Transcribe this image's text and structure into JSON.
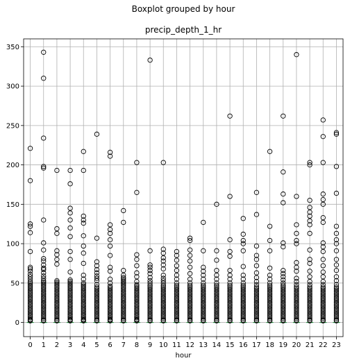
{
  "chart_data": {
    "type": "box",
    "suptitle": "Boxplot grouped by hour",
    "title": "precip_depth_1_hr",
    "xlabel": "hour",
    "ylabel": "",
    "categories": [
      "0",
      "1",
      "2",
      "3",
      "4",
      "5",
      "6",
      "7",
      "8",
      "9",
      "10",
      "11",
      "12",
      "13",
      "14",
      "15",
      "16",
      "17",
      "18",
      "19",
      "20",
      "21",
      "22",
      "23"
    ],
    "yticks": [
      0,
      50,
      100,
      150,
      200,
      250,
      300,
      350
    ],
    "ylim": [
      -18,
      360
    ],
    "grid": true,
    "box_color": "#1f77b4",
    "median_color": "#2ca02c",
    "box_values": [
      0,
      0,
      0,
      0,
      0,
      0,
      0,
      0,
      0,
      0,
      0,
      0,
      0,
      0,
      0,
      0,
      0,
      0,
      0,
      0,
      0,
      0,
      0,
      0
    ],
    "fliers": [
      [
        221,
        180,
        125,
        122,
        114,
        90,
        70,
        68,
        65,
        61,
        58,
        55,
        52,
        50,
        48,
        46,
        44,
        42,
        40,
        38,
        36,
        34,
        32,
        30,
        28,
        26,
        24,
        22,
        20,
        18,
        16,
        14,
        12,
        10,
        8,
        6,
        4,
        3,
        2
      ],
      [
        343,
        310,
        234,
        198,
        196,
        130,
        101,
        92,
        81,
        78,
        73,
        69,
        67,
        63,
        59,
        56,
        53,
        51,
        49,
        47,
        45,
        43,
        41,
        39,
        37,
        35,
        33,
        31,
        29,
        27,
        25,
        23,
        21,
        19,
        17,
        15,
        13,
        11,
        9,
        7,
        5,
        3,
        2
      ],
      [
        193,
        119,
        113,
        91,
        86,
        80,
        74,
        53,
        51,
        49,
        47,
        45,
        43,
        41,
        39,
        37,
        35,
        33,
        31,
        29,
        27,
        25,
        23,
        21,
        19,
        17,
        15,
        13,
        11,
        9,
        7,
        5,
        3,
        2
      ],
      [
        193,
        176,
        145,
        139,
        130,
        120,
        109,
        90,
        80,
        64,
        54,
        52,
        50,
        48,
        46,
        44,
        42,
        40,
        38,
        36,
        34,
        32,
        30,
        28,
        26,
        24,
        22,
        20,
        18,
        16,
        14,
        12,
        10,
        8,
        6,
        4,
        3,
        2
      ],
      [
        217,
        193,
        135,
        130,
        126,
        110,
        97,
        88,
        75,
        60,
        55,
        50,
        48,
        46,
        44,
        42,
        40,
        38,
        36,
        34,
        32,
        30,
        28,
        26,
        24,
        22,
        20,
        18,
        16,
        14,
        12,
        10,
        8,
        6,
        4,
        3,
        2
      ],
      [
        239,
        107,
        77,
        72,
        67,
        63,
        59,
        56,
        53,
        48,
        45,
        43,
        41,
        39,
        37,
        35,
        33,
        31,
        29,
        27,
        25,
        23,
        21,
        19,
        17,
        15,
        13,
        11,
        9,
        7,
        5,
        3,
        2
      ],
      [
        216,
        211,
        124,
        118,
        113,
        105,
        97,
        85,
        70,
        65,
        55,
        50,
        46,
        44,
        42,
        40,
        38,
        36,
        34,
        32,
        30,
        28,
        26,
        24,
        22,
        20,
        18,
        16,
        14,
        12,
        10,
        8,
        6,
        4,
        3,
        2
      ],
      [
        142,
        127,
        66,
        60,
        57,
        55,
        53,
        51,
        49,
        47,
        45,
        43,
        41,
        39,
        37,
        35,
        33,
        31,
        29,
        27,
        25,
        23,
        21,
        19,
        17,
        15,
        13,
        11,
        9,
        7,
        5,
        3,
        2
      ],
      [
        203,
        165,
        86,
        80,
        72,
        63,
        58,
        52,
        48,
        46,
        44,
        42,
        40,
        38,
        36,
        34,
        32,
        30,
        28,
        26,
        24,
        22,
        20,
        18,
        16,
        14,
        12,
        10,
        8,
        6,
        4,
        3,
        2
      ],
      [
        333,
        91,
        73,
        70,
        66,
        62,
        57,
        53,
        50,
        47,
        45,
        43,
        41,
        39,
        37,
        35,
        33,
        31,
        29,
        27,
        25,
        23,
        21,
        19,
        17,
        15,
        13,
        11,
        9,
        7,
        5,
        3,
        2
      ],
      [
        203,
        93,
        88,
        82,
        78,
        73,
        68,
        60,
        56,
        53,
        50,
        47,
        45,
        43,
        41,
        39,
        37,
        35,
        33,
        31,
        29,
        27,
        25,
        23,
        21,
        19,
        17,
        15,
        13,
        11,
        9,
        7,
        5,
        3,
        2
      ],
      [
        90,
        85,
        79,
        72,
        66,
        60,
        55,
        50,
        47,
        45,
        43,
        41,
        39,
        37,
        35,
        33,
        31,
        29,
        27,
        25,
        23,
        21,
        19,
        17,
        15,
        13,
        11,
        9,
        7,
        5,
        3,
        2
      ],
      [
        107,
        104,
        92,
        85,
        78,
        70,
        62,
        55,
        50,
        47,
        45,
        43,
        41,
        39,
        37,
        35,
        33,
        31,
        29,
        27,
        25,
        23,
        21,
        19,
        17,
        15,
        13,
        11,
        9,
        7,
        5,
        3,
        2
      ],
      [
        127,
        91,
        70,
        65,
        60,
        55,
        50,
        47,
        45,
        43,
        41,
        39,
        37,
        35,
        33,
        31,
        29,
        27,
        25,
        23,
        21,
        19,
        17,
        15,
        13,
        11,
        9,
        7,
        5,
        3,
        2
      ],
      [
        150,
        91,
        79,
        66,
        60,
        55,
        50,
        47,
        45,
        43,
        41,
        39,
        37,
        35,
        33,
        31,
        29,
        27,
        25,
        23,
        21,
        19,
        17,
        15,
        13,
        11,
        9,
        7,
        5,
        3,
        2
      ],
      [
        262,
        160,
        105,
        90,
        84,
        66,
        60,
        55,
        50,
        47,
        45,
        43,
        41,
        39,
        37,
        35,
        33,
        31,
        29,
        27,
        25,
        23,
        21,
        19,
        17,
        15,
        13,
        11,
        9,
        7,
        5,
        3,
        2
      ],
      [
        132,
        112,
        104,
        100,
        91,
        71,
        60,
        55,
        50,
        47,
        45,
        43,
        41,
        39,
        37,
        35,
        33,
        31,
        29,
        27,
        25,
        23,
        21,
        19,
        17,
        15,
        13,
        11,
        9,
        7,
        5,
        3,
        2
      ],
      [
        165,
        137,
        97,
        85,
        80,
        72,
        63,
        57,
        52,
        48,
        45,
        43,
        41,
        39,
        37,
        35,
        33,
        31,
        29,
        27,
        25,
        23,
        21,
        19,
        17,
        15,
        13,
        11,
        9,
        7,
        5,
        3,
        2
      ],
      [
        217,
        122,
        104,
        91,
        69,
        60,
        55,
        50,
        47,
        45,
        43,
        41,
        39,
        37,
        35,
        33,
        31,
        29,
        27,
        25,
        23,
        21,
        19,
        17,
        15,
        13,
        11,
        9,
        7,
        5,
        3,
        2
      ],
      [
        262,
        191,
        163,
        152,
        101,
        96,
        66,
        62,
        58,
        54,
        50,
        47,
        45,
        43,
        41,
        39,
        37,
        35,
        33,
        31,
        29,
        27,
        25,
        23,
        21,
        19,
        17,
        15,
        13,
        11,
        9,
        7,
        5,
        3,
        2
      ],
      [
        340,
        160,
        124,
        113,
        104,
        100,
        76,
        70,
        65,
        56,
        52,
        48,
        45,
        43,
        41,
        39,
        37,
        35,
        33,
        31,
        29,
        27,
        25,
        23,
        21,
        19,
        17,
        15,
        13,
        11,
        9,
        7,
        5,
        3,
        2
      ],
      [
        203,
        200,
        155,
        146,
        140,
        135,
        129,
        124,
        113,
        92,
        80,
        75,
        65,
        58,
        52,
        48,
        45,
        43,
        41,
        39,
        37,
        35,
        33,
        31,
        29,
        27,
        25,
        23,
        21,
        19,
        17,
        15,
        13,
        11,
        9,
        7,
        5,
        3,
        2
      ],
      [
        257,
        236,
        203,
        163,
        156,
        150,
        133,
        127,
        101,
        96,
        90,
        80,
        72,
        64,
        58,
        52,
        48,
        45,
        43,
        41,
        39,
        37,
        35,
        33,
        31,
        29,
        27,
        25,
        23,
        21,
        19,
        17,
        15,
        13,
        11,
        9,
        7,
        5,
        3,
        2
      ],
      [
        241,
        239,
        198,
        164,
        122,
        113,
        105,
        100,
        91,
        80,
        73,
        66,
        58,
        53,
        48,
        45,
        43,
        41,
        39,
        37,
        35,
        33,
        31,
        29,
        27,
        25,
        23,
        21,
        19,
        17,
        15,
        13,
        11,
        9,
        7,
        5,
        3,
        2
      ]
    ]
  }
}
